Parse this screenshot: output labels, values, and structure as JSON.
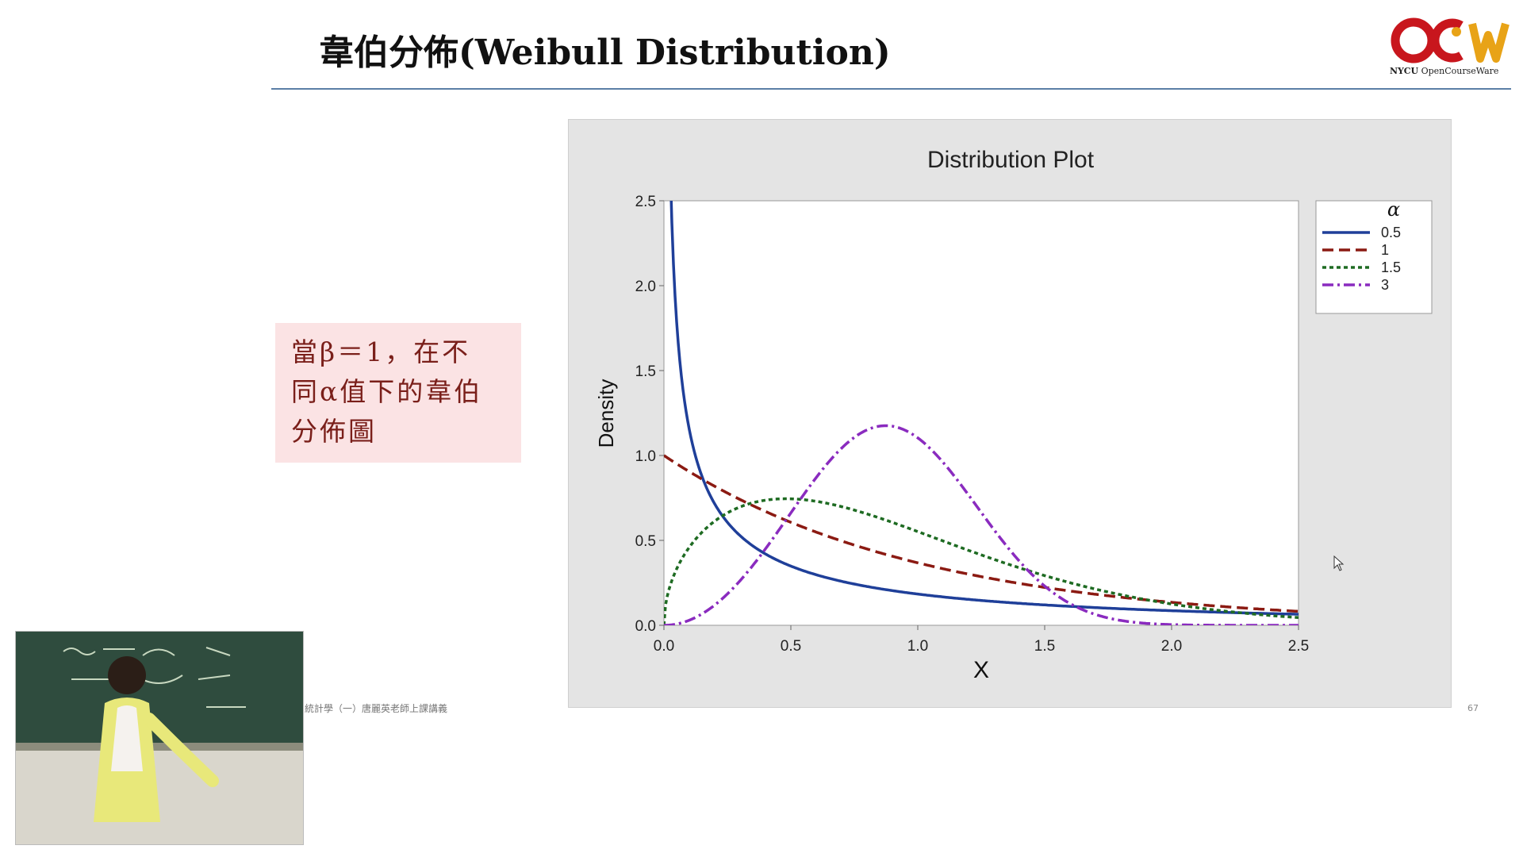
{
  "slide": {
    "title": "韋伯分佈(Weibull Distribution)",
    "note_lines": [
      "當β＝1，在不",
      "同α值下的韋伯",
      "分佈圖"
    ],
    "footer": "統計學（一）唐麗英老師上課講義",
    "page_number": "67"
  },
  "logo": {
    "brand_short": "NYCU",
    "brand_long": "OpenCourseWare",
    "colors": {
      "red": "#c8161d",
      "gold": "#e8a317"
    }
  },
  "chart_data": {
    "type": "line",
    "title": "Distribution Plot",
    "xlabel": "X",
    "ylabel": "Density",
    "xlim": [
      0,
      2.5
    ],
    "ylim": [
      0,
      2.5
    ],
    "x_ticks": [
      "0.0",
      "0.5",
      "1.0",
      "1.5",
      "2.0",
      "2.5"
    ],
    "y_ticks": [
      "0.0",
      "0.5",
      "1.0",
      "1.5",
      "2.0",
      "2.5"
    ],
    "legend_title": "α",
    "legend_position": "right",
    "distribution": "Weibull, scale β = 1",
    "series": [
      {
        "name": "0.5",
        "shape": 0.5,
        "color": "#1f3f99",
        "dash": "solid",
        "x": [
          0.02,
          0.05,
          0.1,
          0.2,
          0.3,
          0.5,
          0.75,
          1.0,
          1.5,
          2.0,
          2.5
        ],
        "y": [
          3.07,
          1.8,
          1.15,
          0.71,
          0.53,
          0.35,
          0.24,
          0.18,
          0.12,
          0.09,
          0.07
        ]
      },
      {
        "name": "1",
        "shape": 1,
        "color": "#8b1a12",
        "dash": "dash",
        "x": [
          0.0,
          0.25,
          0.5,
          0.75,
          1.0,
          1.5,
          2.0,
          2.5
        ],
        "y": [
          1.0,
          0.78,
          0.61,
          0.47,
          0.37,
          0.22,
          0.14,
          0.08
        ]
      },
      {
        "name": "1.5",
        "shape": 1.5,
        "color": "#1e6b22",
        "dash": "dot",
        "x": [
          0.0,
          0.1,
          0.25,
          0.5,
          0.75,
          1.0,
          1.25,
          1.5,
          2.0,
          2.5
        ],
        "y": [
          0.0,
          0.46,
          0.66,
          0.74,
          0.68,
          0.55,
          0.41,
          0.29,
          0.12,
          0.05
        ]
      },
      {
        "name": "3",
        "shape": 3,
        "color": "#8a2bbf",
        "dash": "dashdot",
        "x": [
          0.0,
          0.25,
          0.5,
          0.75,
          0.87,
          1.0,
          1.25,
          1.5,
          2.0,
          2.5
        ],
        "y": [
          0.0,
          0.18,
          0.66,
          1.11,
          1.18,
          1.1,
          0.67,
          0.23,
          0.01,
          0.0
        ]
      }
    ]
  }
}
